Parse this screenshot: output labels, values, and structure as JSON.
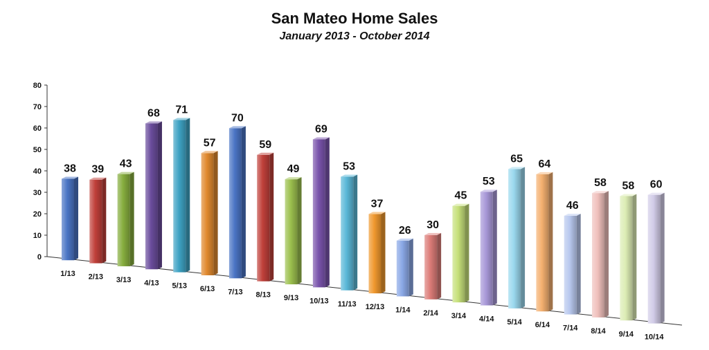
{
  "chart_data": {
    "type": "bar",
    "title": "San Mateo Home Sales",
    "subtitle": "January 2013 - October 2014",
    "xlabel": "",
    "ylabel": "",
    "ylim": [
      0,
      80
    ],
    "yticks": [
      0,
      10,
      20,
      30,
      40,
      50,
      60,
      70,
      80
    ],
    "grid": false,
    "legend": "none",
    "categories": [
      "1/13",
      "2/13",
      "3/13",
      "4/13",
      "5/13",
      "6/13",
      "7/13",
      "8/13",
      "9/13",
      "10/13",
      "11/13",
      "12/13",
      "1/14",
      "2/14",
      "3/14",
      "4/14",
      "5/14",
      "6/14",
      "7/14",
      "8/14",
      "9/14",
      "10/14"
    ],
    "values": [
      38,
      39,
      43,
      68,
      71,
      57,
      70,
      59,
      49,
      69,
      53,
      37,
      26,
      30,
      45,
      53,
      65,
      64,
      46,
      58,
      58,
      60
    ],
    "colors": [
      "#4a74c4",
      "#c0403a",
      "#86ad3e",
      "#6a4c9c",
      "#3ea3c4",
      "#e0892e",
      "#4a74c4",
      "#c0403a",
      "#9cc04e",
      "#7a54ac",
      "#5ab8d8",
      "#f0982e",
      "#8aa8e6",
      "#dc7c78",
      "#c6e07a",
      "#a898d8",
      "#9ad8ee",
      "#f4b070",
      "#b8c8ee",
      "#f0c0bc",
      "#dcecb4",
      "#d2cce8"
    ]
  }
}
